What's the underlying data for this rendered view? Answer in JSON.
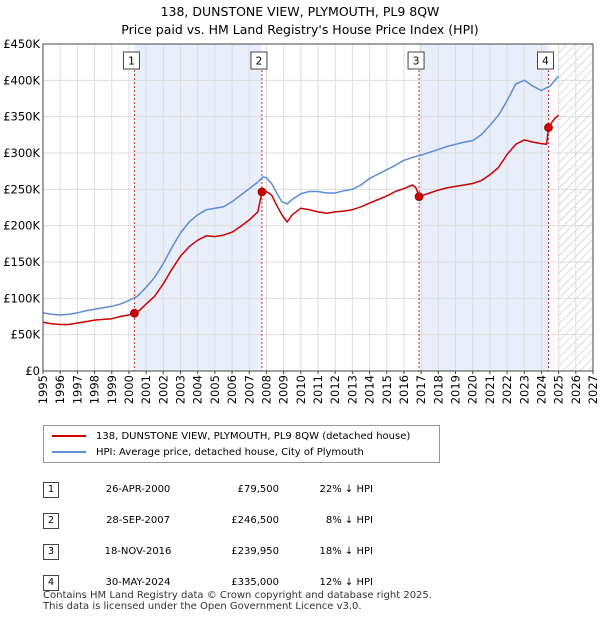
{
  "title_line1": "138, DUNSTONE VIEW, PLYMOUTH, PL9 8QW",
  "title_line2": "Price paid vs. HM Land Registry's House Price Index (HPI)",
  "chart_data": {
    "type": "line",
    "title": "138, DUNSTONE VIEW, PLYMOUTH, PL9 8QW — Price paid vs. HM Land Registry's House Price Index (HPI)",
    "xlim": [
      1995,
      2027
    ],
    "ylim": [
      0,
      450000
    ],
    "y_ticks": [
      0,
      50000,
      100000,
      150000,
      200000,
      250000,
      300000,
      350000,
      400000,
      450000
    ],
    "y_tick_labels": [
      "£0",
      "£50K",
      "£100K",
      "£150K",
      "£200K",
      "£250K",
      "£300K",
      "£350K",
      "£400K",
      "£450K"
    ],
    "x_ticks": [
      1995,
      1996,
      1997,
      1998,
      1999,
      2000,
      2001,
      2002,
      2003,
      2004,
      2005,
      2006,
      2007,
      2008,
      2009,
      2010,
      2011,
      2012,
      2013,
      2014,
      2015,
      2016,
      2017,
      2018,
      2019,
      2020,
      2021,
      2022,
      2023,
      2024,
      2025,
      2026,
      2027
    ],
    "grid": true,
    "shaded_ownership_periods": [
      [
        2000.32,
        2007.74
      ],
      [
        2016.88,
        2024.41
      ]
    ],
    "future_hatch_from": 2025.0,
    "series": [
      {
        "name": "138, DUNSTONE VIEW, PLYMOUTH, PL9 8QW (detached house)",
        "color": "#cc0000",
        "x": [
          1995.0,
          1995.5,
          1996.0,
          1996.5,
          1997.0,
          1997.5,
          1998.0,
          1998.5,
          1999.0,
          1999.5,
          2000.0,
          2000.32,
          2000.6,
          2001.0,
          2001.5,
          2002.0,
          2002.5,
          2003.0,
          2003.5,
          2004.0,
          2004.5,
          2005.0,
          2005.5,
          2006.0,
          2006.5,
          2007.0,
          2007.5,
          2007.74,
          2008.0,
          2008.3,
          2008.6,
          2008.9,
          2009.2,
          2009.5,
          2010.0,
          2010.5,
          2011.0,
          2011.5,
          2012.0,
          2012.5,
          2013.0,
          2013.5,
          2014.0,
          2014.5,
          2015.0,
          2015.5,
          2016.0,
          2016.5,
          2016.7,
          2016.88,
          2017.0,
          2017.5,
          2018.0,
          2018.5,
          2019.0,
          2019.5,
          2020.0,
          2020.5,
          2021.0,
          2021.5,
          2022.0,
          2022.5,
          2023.0,
          2023.5,
          2024.0,
          2024.3,
          2024.41,
          2024.6,
          2024.8,
          2025.0
        ],
        "y": [
          67000,
          65000,
          64000,
          64000,
          66000,
          68000,
          70000,
          71000,
          72000,
          75000,
          77000,
          79500,
          83000,
          92000,
          103000,
          120000,
          140000,
          158000,
          171000,
          180000,
          186000,
          185000,
          187000,
          191000,
          199000,
          208000,
          219000,
          246500,
          247000,
          242000,
          228000,
          215000,
          205000,
          215000,
          224000,
          222000,
          219000,
          217000,
          219000,
          220000,
          222000,
          226000,
          231000,
          236000,
          241000,
          247000,
          251000,
          256000,
          252000,
          239950,
          241000,
          245000,
          249000,
          252000,
          254000,
          256000,
          258000,
          262000,
          270000,
          280000,
          298000,
          312000,
          318000,
          315000,
          313000,
          312000,
          335000,
          342000,
          348000,
          352000
        ]
      },
      {
        "name": "HPI: Average price, detached house, City of Plymouth",
        "color": "#5b8ed6",
        "x": [
          1995.0,
          1995.5,
          1996.0,
          1996.5,
          1997.0,
          1997.5,
          1998.0,
          1998.5,
          1999.0,
          1999.5,
          2000.0,
          2000.5,
          2001.0,
          2001.5,
          2002.0,
          2002.5,
          2003.0,
          2003.5,
          2004.0,
          2004.5,
          2005.0,
          2005.5,
          2006.0,
          2006.5,
          2007.0,
          2007.5,
          2007.8,
          2008.0,
          2008.3,
          2008.6,
          2008.9,
          2009.2,
          2009.5,
          2010.0,
          2010.5,
          2011.0,
          2011.5,
          2012.0,
          2012.5,
          2013.0,
          2013.5,
          2014.0,
          2014.5,
          2015.0,
          2015.5,
          2016.0,
          2016.5,
          2017.0,
          2017.5,
          2018.0,
          2018.5,
          2019.0,
          2019.5,
          2020.0,
          2020.5,
          2021.0,
          2021.5,
          2022.0,
          2022.5,
          2023.0,
          2023.5,
          2024.0,
          2024.5,
          2025.0
        ],
        "y": [
          80000,
          78000,
          77000,
          78000,
          80000,
          83000,
          85000,
          87000,
          89000,
          92000,
          97000,
          103000,
          115000,
          129000,
          148000,
          170000,
          190000,
          205000,
          215000,
          222000,
          224000,
          226000,
          233000,
          242000,
          251000,
          260000,
          267000,
          266000,
          258000,
          245000,
          233000,
          230000,
          236000,
          244000,
          247000,
          247000,
          245000,
          245000,
          248000,
          250000,
          256000,
          265000,
          271000,
          277000,
          283000,
          290000,
          294000,
          297000,
          301000,
          305000,
          309000,
          312000,
          315000,
          317000,
          325000,
          338000,
          352000,
          372000,
          395000,
          400000,
          392000,
          386000,
          392000,
          406000
        ]
      }
    ],
    "markers": [
      {
        "label": "1",
        "x": 2000.32,
        "y": 79500
      },
      {
        "label": "2",
        "x": 2007.74,
        "y": 246500
      },
      {
        "label": "3",
        "x": 2016.88,
        "y": 239950
      },
      {
        "label": "4",
        "x": 2024.41,
        "y": 335000
      }
    ]
  },
  "legend": {
    "property": "138, DUNSTONE VIEW, PLYMOUTH, PL9 8QW (detached house)",
    "hpi": "HPI: Average price, detached house, City of Plymouth"
  },
  "transactions": [
    {
      "n": "1",
      "date": "26-APR-2000",
      "price": "£79,500",
      "hpi": "22% ↓ HPI"
    },
    {
      "n": "2",
      "date": "28-SEP-2007",
      "price": "£246,500",
      "hpi": "8% ↓ HPI"
    },
    {
      "n": "3",
      "date": "18-NOV-2016",
      "price": "£239,950",
      "hpi": "18% ↓ HPI"
    },
    {
      "n": "4",
      "date": "30-MAY-2024",
      "price": "£335,000",
      "hpi": "12% ↓ HPI"
    }
  ],
  "footer_line1": "Contains HM Land Registry data © Crown copyright and database right 2025.",
  "footer_line2": "This data is licensed under the Open Government Licence v3.0."
}
